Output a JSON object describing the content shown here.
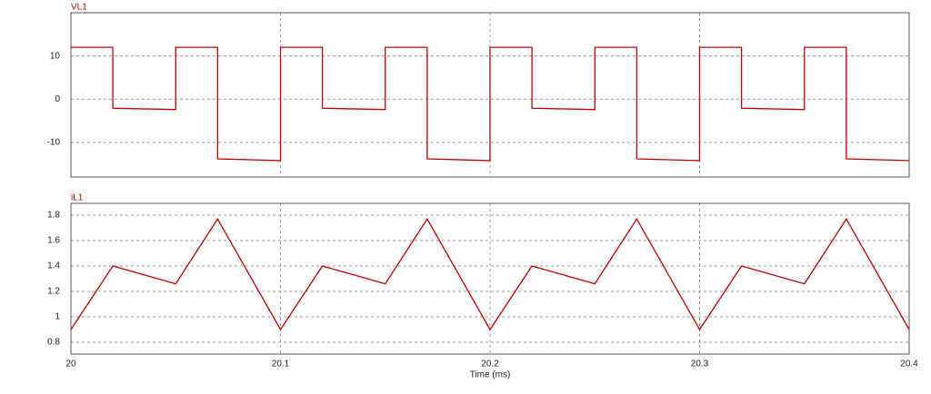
{
  "chart_data": [
    {
      "type": "line",
      "title": "VL1",
      "color": "#c00000",
      "x": [
        20,
        20.02,
        20.02,
        20.05,
        20.05,
        20.07,
        20.07,
        20.1,
        20.1,
        20.12,
        20.12,
        20.15,
        20.15,
        20.17,
        20.17,
        20.2,
        20.2,
        20.22,
        20.22,
        20.25,
        20.25,
        20.27,
        20.27,
        20.3,
        20.3,
        20.32,
        20.32,
        20.35,
        20.35,
        20.37,
        20.37,
        20.4
      ],
      "values": [
        12,
        12,
        -2.1,
        -2.4,
        12,
        12,
        -13.8,
        -14.2,
        12,
        12,
        -2.1,
        -2.4,
        12,
        12,
        -13.8,
        -14.2,
        12,
        12,
        -2.1,
        -2.4,
        12,
        12,
        -13.8,
        -14.2,
        12,
        12,
        -2.1,
        -2.4,
        12,
        12,
        -13.8,
        -14.2
      ],
      "xlim": [
        20,
        20.4
      ],
      "xticks": [
        20,
        20.1,
        20.2,
        20.3,
        20.4
      ],
      "ylim": [
        -18,
        20
      ],
      "yticks": [
        -10,
        0,
        10
      ],
      "grid": true
    },
    {
      "type": "line",
      "title": "iL1",
      "color": "#c00000",
      "xlabel": "Time (ms)",
      "x": [
        20,
        20.02,
        20.05,
        20.07,
        20.1,
        20.12,
        20.15,
        20.17,
        20.2,
        20.22,
        20.25,
        20.27,
        20.3,
        20.32,
        20.35,
        20.37,
        20.4
      ],
      "values": [
        0.9,
        1.4,
        1.26,
        1.77,
        0.9,
        1.4,
        1.26,
        1.77,
        0.9,
        1.4,
        1.26,
        1.77,
        0.9,
        1.4,
        1.26,
        1.77,
        0.9
      ],
      "xlim": [
        20,
        20.4
      ],
      "xticks": [
        20,
        20.1,
        20.2,
        20.3,
        20.4
      ],
      "ylim": [
        0.707,
        1.893
      ],
      "yticks": [
        0.8,
        1,
        1.2,
        1.4,
        1.6,
        1.8
      ],
      "grid": true
    }
  ]
}
